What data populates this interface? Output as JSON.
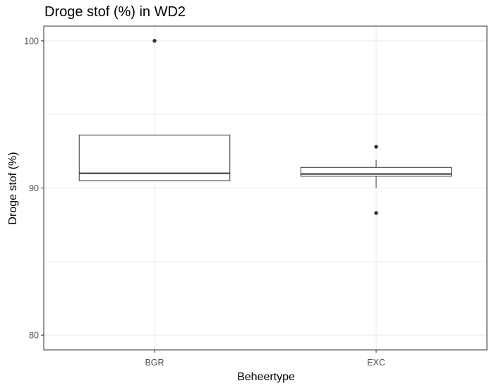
{
  "chart_data": {
    "type": "boxplot",
    "title": "Droge stof (%) in WD2",
    "xlabel": "Beheertype",
    "ylabel": "Droge stof (%)",
    "categories": [
      "BGR",
      "EXC"
    ],
    "ylim": [
      79.0,
      101.0
    ],
    "y_ticks": [
      80,
      90,
      100
    ],
    "y_minor_ticks": [
      85,
      95
    ],
    "grid": true,
    "boxes": [
      {
        "category": "BGR",
        "q1": 90.5,
        "median": 91.0,
        "q3": 93.6,
        "whisker_low": 90.5,
        "whisker_high": 93.6,
        "outliers": [
          100.0
        ]
      },
      {
        "category": "EXC",
        "q1": 90.8,
        "median": 90.95,
        "q3": 91.4,
        "whisker_low": 90.0,
        "whisker_high": 91.9,
        "outliers": [
          92.8,
          88.3
        ]
      }
    ]
  },
  "colors": {
    "grid": "#ebebeb",
    "panel_border": "#333333",
    "box_stroke": "#333333",
    "box_fill": "#ffffff",
    "point": "#333333",
    "tick_text": "#4d4d4d"
  }
}
